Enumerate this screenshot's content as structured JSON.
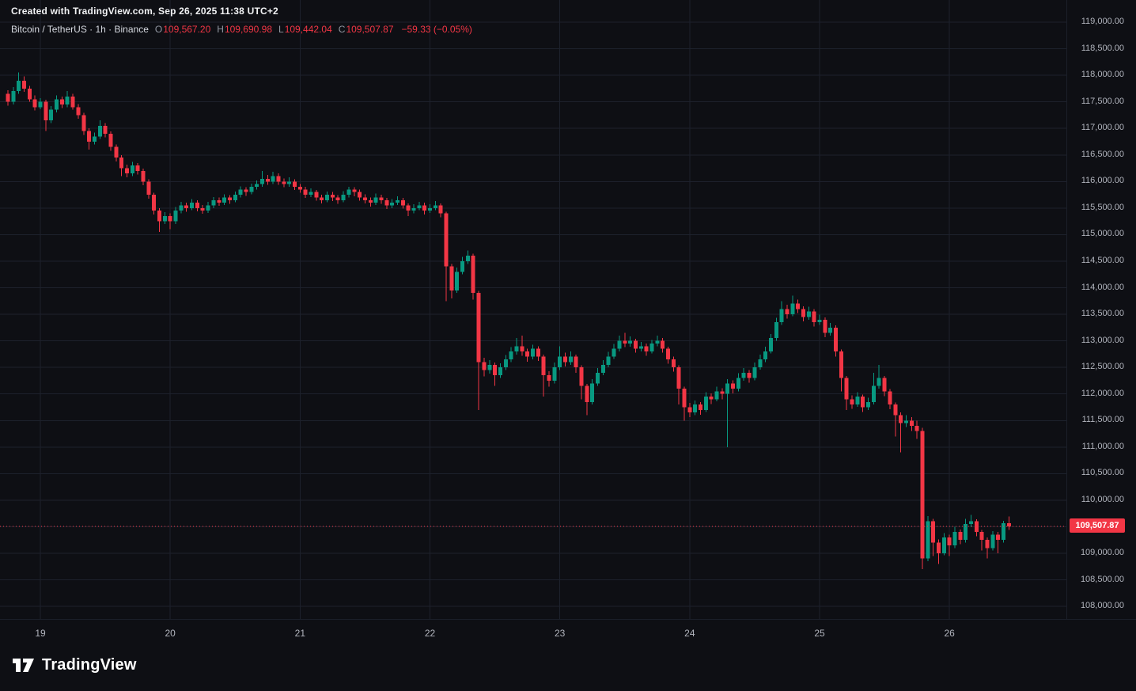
{
  "header": {
    "attribution": "Created with TradingView.com, Sep 26, 2025 11:38 UTC+2",
    "symbol_title": "Bitcoin / TetherUS · 1h · Binance",
    "ohlc": {
      "o_label": "O",
      "o_value": "109,567.20",
      "h_label": "H",
      "h_value": "109,690.98",
      "l_label": "L",
      "l_value": "109,442.04",
      "c_label": "C",
      "c_value": "109,507.87"
    },
    "change": "−59.33 (−0.05%)"
  },
  "footer": {
    "brand": "TradingView"
  },
  "colors": {
    "background": "#0e0f14",
    "grid": "#1d212c",
    "up": "#089981",
    "down": "#f23645",
    "axis_text": "#b2b5be",
    "badge_bg": "#f23645",
    "badge_text": "#ffffff"
  },
  "price_scale": {
    "current_price_label": "109,507.87",
    "labels": [
      "119,000.00",
      "118,500.00",
      "118,000.00",
      "117,500.00",
      "117,000.00",
      "116,500.00",
      "116,000.00",
      "115,500.00",
      "115,000.00",
      "114,500.00",
      "114,000.00",
      "113,500.00",
      "113,000.00",
      "112,500.00",
      "112,000.00",
      "111,500.00",
      "111,000.00",
      "110,500.00",
      "110,000.00",
      "109,500.00",
      "109,000.00",
      "108,500.00",
      "108,000.00"
    ]
  },
  "time_scale": {
    "labels": [
      "19",
      "20",
      "21",
      "22",
      "23",
      "24",
      "25",
      "26"
    ]
  },
  "chart_data": {
    "type": "candlestick",
    "symbol": "Bitcoin / TetherUS",
    "interval": "1h",
    "exchange": "Binance",
    "current_price": 109507.87,
    "legend_ohlc": {
      "open": 109567.2,
      "high": 109690.98,
      "low": 109442.04,
      "close": 109507.87,
      "change": -59.33,
      "change_percent": -0.05
    },
    "y_axis": {
      "min": 108000,
      "max": 119000,
      "tick_step": 500
    },
    "x_axis": {
      "day_labels": [
        "19",
        "20",
        "21",
        "22",
        "23",
        "24",
        "25",
        "26"
      ],
      "day_tick_indices": [
        6,
        30,
        54,
        78,
        102,
        126,
        150,
        174
      ],
      "candles_per_day": 24
    },
    "ohlc": [
      [
        117650,
        117720,
        117430,
        117500
      ],
      [
        117500,
        117780,
        117450,
        117700
      ],
      [
        117700,
        118050,
        117650,
        117900
      ],
      [
        117900,
        117980,
        117690,
        117750
      ],
      [
        117750,
        117800,
        117500,
        117550
      ],
      [
        117550,
        117620,
        117340,
        117400
      ],
      [
        117400,
        117570,
        117360,
        117500
      ],
      [
        117500,
        117540,
        116950,
        117150
      ],
      [
        117150,
        117420,
        117100,
        117350
      ],
      [
        117350,
        117620,
        117300,
        117550
      ],
      [
        117550,
        117600,
        117380,
        117450
      ],
      [
        117450,
        117700,
        117400,
        117600
      ],
      [
        117600,
        117650,
        117350,
        117400
      ],
      [
        117400,
        117460,
        117180,
        117250
      ],
      [
        117250,
        117290,
        116880,
        116950
      ],
      [
        116950,
        117000,
        116600,
        116750
      ],
      [
        116750,
        116920,
        116700,
        116850
      ],
      [
        116850,
        117150,
        116800,
        117050
      ],
      [
        117050,
        117100,
        116830,
        116900
      ],
      [
        116900,
        116940,
        116580,
        116650
      ],
      [
        116650,
        116700,
        116380,
        116450
      ],
      [
        116450,
        116500,
        116100,
        116250
      ],
      [
        116250,
        116320,
        116080,
        116150
      ],
      [
        116150,
        116370,
        116100,
        116300
      ],
      [
        116300,
        116350,
        116130,
        116200
      ],
      [
        116200,
        116240,
        115930,
        116000
      ],
      [
        116000,
        116040,
        115680,
        115750
      ],
      [
        115750,
        115790,
        115380,
        115450
      ],
      [
        115450,
        115500,
        115050,
        115250
      ],
      [
        115250,
        115420,
        115200,
        115350
      ],
      [
        115350,
        115400,
        115100,
        115250
      ],
      [
        115250,
        115520,
        115200,
        115450
      ],
      [
        115450,
        115620,
        115400,
        115550
      ],
      [
        115550,
        115600,
        115430,
        115500
      ],
      [
        115500,
        115670,
        115460,
        115600
      ],
      [
        115600,
        115650,
        115440,
        115500
      ],
      [
        115500,
        115560,
        115390,
        115450
      ],
      [
        115450,
        115620,
        115410,
        115550
      ],
      [
        115550,
        115710,
        115500,
        115650
      ],
      [
        115650,
        115700,
        115540,
        115600
      ],
      [
        115600,
        115760,
        115560,
        115700
      ],
      [
        115700,
        115740,
        115580,
        115650
      ],
      [
        115650,
        115810,
        115610,
        115750
      ],
      [
        115750,
        115910,
        115700,
        115850
      ],
      [
        115850,
        115890,
        115730,
        115800
      ],
      [
        115800,
        115960,
        115760,
        115900
      ],
      [
        115900,
        116020,
        115850,
        115950
      ],
      [
        115950,
        116200,
        115900,
        116050
      ],
      [
        116050,
        116120,
        115940,
        116000
      ],
      [
        116000,
        116180,
        115950,
        116100
      ],
      [
        116100,
        116150,
        115940,
        116000
      ],
      [
        116000,
        116060,
        115890,
        115950
      ],
      [
        115950,
        116080,
        115900,
        116000
      ],
      [
        116000,
        116040,
        115840,
        115900
      ],
      [
        115900,
        115950,
        115790,
        115850
      ],
      [
        115850,
        115900,
        115690,
        115750
      ],
      [
        115750,
        115870,
        115710,
        115800
      ],
      [
        115800,
        115840,
        115640,
        115700
      ],
      [
        115700,
        115750,
        115590,
        115650
      ],
      [
        115650,
        115810,
        115610,
        115750
      ],
      [
        115750,
        115800,
        115630,
        115700
      ],
      [
        115700,
        115740,
        115580,
        115650
      ],
      [
        115650,
        115820,
        115610,
        115750
      ],
      [
        115750,
        115900,
        115700,
        115850
      ],
      [
        115850,
        115890,
        115720,
        115800
      ],
      [
        115800,
        115850,
        115640,
        115700
      ],
      [
        115700,
        115760,
        115590,
        115650
      ],
      [
        115650,
        115700,
        115530,
        115600
      ],
      [
        115600,
        115770,
        115560,
        115700
      ],
      [
        115700,
        115750,
        115580,
        115650
      ],
      [
        115650,
        115690,
        115480,
        115550
      ],
      [
        115550,
        115670,
        115500,
        115600
      ],
      [
        115600,
        115720,
        115560,
        115650
      ],
      [
        115650,
        115690,
        115490,
        115550
      ],
      [
        115550,
        115590,
        115350,
        115450
      ],
      [
        115450,
        115570,
        115400,
        115500
      ],
      [
        115500,
        115620,
        115460,
        115550
      ],
      [
        115550,
        115600,
        115380,
        115450
      ],
      [
        115450,
        115570,
        115410,
        115500
      ],
      [
        115500,
        115630,
        115460,
        115550
      ],
      [
        115550,
        115590,
        115330,
        115400
      ],
      [
        115400,
        115430,
        113750,
        114400
      ],
      [
        114400,
        114450,
        113800,
        113950
      ],
      [
        113950,
        114380,
        113900,
        114300
      ],
      [
        114300,
        114580,
        114250,
        114500
      ],
      [
        114500,
        114700,
        114450,
        114600
      ],
      [
        114600,
        114640,
        113780,
        113900
      ],
      [
        113900,
        113940,
        111700,
        112600
      ],
      [
        112600,
        112680,
        112330,
        112450
      ],
      [
        112450,
        112640,
        112380,
        112550
      ],
      [
        112550,
        112590,
        112150,
        112350
      ],
      [
        112350,
        112580,
        112300,
        112500
      ],
      [
        112500,
        112730,
        112450,
        112650
      ],
      [
        112650,
        112880,
        112600,
        112800
      ],
      [
        112800,
        113050,
        112740,
        112900
      ],
      [
        112900,
        113100,
        112720,
        112800
      ],
      [
        112800,
        112850,
        112610,
        112700
      ],
      [
        112700,
        112930,
        112650,
        112850
      ],
      [
        112850,
        112900,
        112620,
        112700
      ],
      [
        112700,
        112740,
        111950,
        112350
      ],
      [
        112350,
        112430,
        112140,
        112250
      ],
      [
        112250,
        112590,
        112200,
        112500
      ],
      [
        112500,
        112900,
        112450,
        112700
      ],
      [
        112700,
        112780,
        112520,
        112600
      ],
      [
        112600,
        112800,
        112550,
        112700
      ],
      [
        112700,
        112740,
        112400,
        112500
      ],
      [
        112500,
        112540,
        111900,
        112150
      ],
      [
        112150,
        112190,
        111600,
        111850
      ],
      [
        111850,
        112280,
        111800,
        112200
      ],
      [
        112200,
        112490,
        112150,
        112400
      ],
      [
        112400,
        112640,
        112350,
        112550
      ],
      [
        112550,
        112790,
        112500,
        112700
      ],
      [
        112700,
        112940,
        112660,
        112850
      ],
      [
        112850,
        113100,
        112800,
        113000
      ],
      [
        113000,
        113150,
        112880,
        112950
      ],
      [
        112950,
        113080,
        112890,
        113000
      ],
      [
        113000,
        113040,
        112780,
        112850
      ],
      [
        112850,
        112980,
        112800,
        112900
      ],
      [
        112900,
        112950,
        112720,
        112800
      ],
      [
        112800,
        113020,
        112760,
        112950
      ],
      [
        112950,
        113100,
        112900,
        113000
      ],
      [
        113000,
        113050,
        112780,
        112850
      ],
      [
        112850,
        112890,
        112570,
        112650
      ],
      [
        112650,
        112700,
        112420,
        112500
      ],
      [
        112500,
        112540,
        111800,
        112100
      ],
      [
        112100,
        112140,
        111500,
        111750
      ],
      [
        111750,
        111830,
        111560,
        111650
      ],
      [
        111650,
        111880,
        111600,
        111800
      ],
      [
        111800,
        111850,
        111610,
        111700
      ],
      [
        111700,
        112030,
        111660,
        111950
      ],
      [
        111950,
        112010,
        111810,
        111900
      ],
      [
        111900,
        112140,
        111860,
        112050
      ],
      [
        112050,
        112110,
        111900,
        112000
      ],
      [
        112000,
        112280,
        111000,
        112200
      ],
      [
        112200,
        112260,
        112010,
        112100
      ],
      [
        112100,
        112390,
        112050,
        112300
      ],
      [
        112300,
        112490,
        112250,
        112400
      ],
      [
        112400,
        112450,
        112210,
        112300
      ],
      [
        112300,
        112590,
        112260,
        112500
      ],
      [
        112500,
        112740,
        112460,
        112650
      ],
      [
        112650,
        112890,
        112600,
        112800
      ],
      [
        112800,
        113130,
        112760,
        113050
      ],
      [
        113050,
        113430,
        113000,
        113350
      ],
      [
        113350,
        113750,
        113300,
        113600
      ],
      [
        113600,
        113680,
        113420,
        113500
      ],
      [
        113500,
        113850,
        113460,
        113700
      ],
      [
        113700,
        113780,
        113520,
        113600
      ],
      [
        113600,
        113650,
        113370,
        113450
      ],
      [
        113450,
        113640,
        113400,
        113550
      ],
      [
        113550,
        113600,
        113270,
        113350
      ],
      [
        113350,
        113490,
        113300,
        113400
      ],
      [
        113400,
        113440,
        113070,
        113150
      ],
      [
        113150,
        113340,
        113100,
        113250
      ],
      [
        113250,
        113290,
        112700,
        112800
      ],
      [
        112800,
        112840,
        112050,
        112300
      ],
      [
        112300,
        112340,
        111700,
        111900
      ],
      [
        111900,
        111970,
        111720,
        111800
      ],
      [
        111800,
        112030,
        111760,
        111950
      ],
      [
        111950,
        111990,
        111660,
        111750
      ],
      [
        111750,
        111930,
        111700,
        111850
      ],
      [
        111850,
        112400,
        111800,
        112150
      ],
      [
        112150,
        112550,
        112100,
        112300
      ],
      [
        112300,
        112340,
        111960,
        112050
      ],
      [
        112050,
        112090,
        111710,
        111800
      ],
      [
        111800,
        111840,
        111200,
        111600
      ],
      [
        111600,
        111650,
        110900,
        111450
      ],
      [
        111450,
        111600,
        111380,
        111500
      ],
      [
        111500,
        111560,
        111300,
        111400
      ],
      [
        111400,
        111500,
        111150,
        111300
      ],
      [
        111300,
        111360,
        108700,
        108900
      ],
      [
        108900,
        109700,
        108850,
        109600
      ],
      [
        109600,
        109650,
        108950,
        109200
      ],
      [
        109200,
        109260,
        108800,
        109000
      ],
      [
        109000,
        109380,
        108960,
        109300
      ],
      [
        109300,
        109350,
        108950,
        109150
      ],
      [
        109150,
        109500,
        109100,
        109400
      ],
      [
        109400,
        109450,
        109170,
        109250
      ],
      [
        109250,
        109650,
        109200,
        109550
      ],
      [
        109550,
        109720,
        109500,
        109600
      ],
      [
        109600,
        109640,
        109320,
        109400
      ],
      [
        109400,
        109440,
        109050,
        109250
      ],
      [
        109250,
        109300,
        108900,
        109100
      ],
      [
        109100,
        109420,
        109050,
        109350
      ],
      [
        109350,
        109400,
        109000,
        109250
      ],
      [
        109250,
        109610,
        109200,
        109567.2
      ],
      [
        109567.2,
        109690.98,
        109442.04,
        109507.87
      ]
    ]
  }
}
